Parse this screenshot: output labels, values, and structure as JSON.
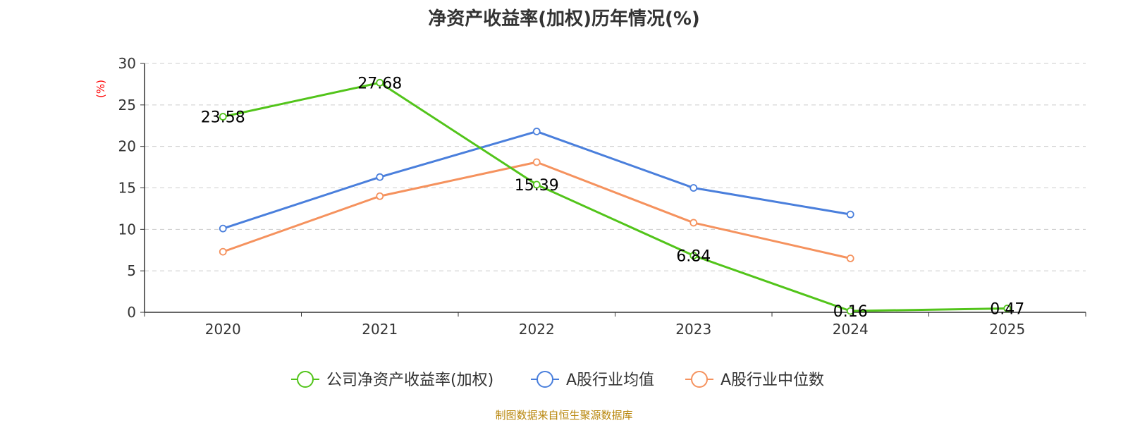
{
  "title": "净资产收益率(加权)历年情况(%)",
  "source": "制图数据来自恒生聚源数据库",
  "colors": {
    "axis": "#333333",
    "grid": "#cccccc",
    "unit": "#ff0000",
    "label": "#000000"
  },
  "chart_data": {
    "type": "line",
    "title": "净资产收益率(加权)历年情况(%)",
    "ylabel": "(%)",
    "xlabel": "",
    "ylim": [
      0,
      30
    ],
    "yticks": [
      0,
      5,
      10,
      15,
      20,
      25,
      30
    ],
    "grid": true,
    "legend_position": "bottom",
    "categories": [
      "2020",
      "2021",
      "2022",
      "2023",
      "2024",
      "2025"
    ],
    "series": [
      {
        "name": "公司净资产收益率(加权)",
        "color": "#52c41a",
        "values": [
          23.58,
          27.68,
          15.39,
          6.84,
          0.16,
          0.47
        ],
        "labels": [
          "23.58",
          "27.68",
          "15.39",
          "6.84",
          "0.16",
          "0.47"
        ]
      },
      {
        "name": "A股行业均值",
        "color": "#4a7fdc",
        "values": [
          10.1,
          16.3,
          21.8,
          15.0,
          11.8,
          null
        ]
      },
      {
        "name": "A股行业中位数",
        "color": "#f5925e",
        "values": [
          7.3,
          14.0,
          18.1,
          10.8,
          6.5,
          null
        ]
      }
    ]
  }
}
